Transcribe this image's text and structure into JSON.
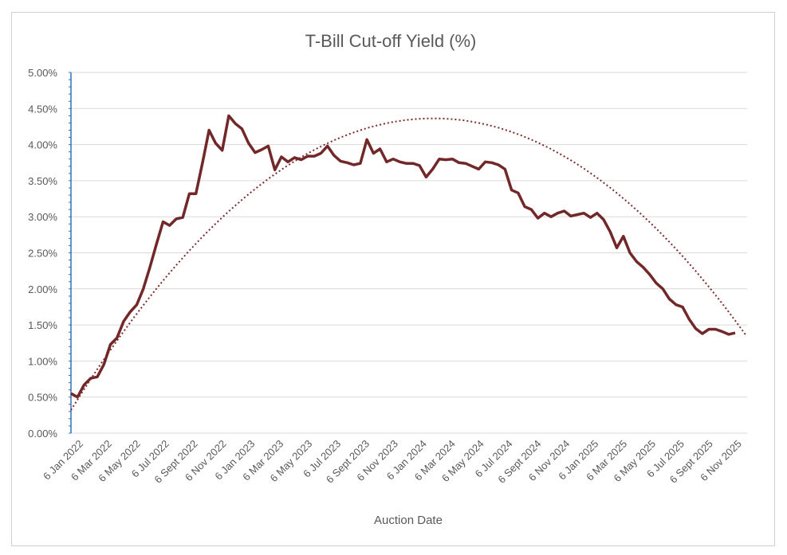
{
  "chart_data": {
    "type": "line",
    "title": "T-Bill Cut-off Yield (%)",
    "xlabel": "Auction Date",
    "ylabel": "",
    "ylim": [
      0,
      5
    ],
    "y_ticks": [
      "0.00%",
      "0.50%",
      "1.00%",
      "1.50%",
      "2.00%",
      "2.50%",
      "3.00%",
      "3.50%",
      "4.00%",
      "4.50%",
      "5.00%"
    ],
    "x_tick_labels": [
      "6 Jan 2022",
      "6 Mar 2022",
      "6 May 2022",
      "6 Jul 2022",
      "6 Sept 2022",
      "6 Nov 2022",
      "6 Jan 2023",
      "6 Mar 2023",
      "6 May 2023",
      "6 Jul 2023",
      "6 Sept 2023",
      "6 Nov 2023",
      "6 Jan 2024",
      "6 Mar 2024",
      "6 May 2024",
      "6 Jul 2024",
      "6 Sept 2024",
      "6 Nov 2024",
      "6 Jan 2025",
      "6 Mar 2025",
      "6 May 2025",
      "6 Jul 2025",
      "6 Sept 2025",
      "6 Nov 2025"
    ],
    "grid": true,
    "colors": {
      "series": "#722828",
      "trend": "#7b2c2c"
    },
    "series": [
      {
        "values": [
          0.55,
          0.5,
          0.67,
          0.76,
          0.78,
          0.95,
          1.23,
          1.32,
          1.55,
          1.68,
          1.78,
          2.0,
          2.3,
          2.62,
          2.93,
          2.88,
          2.97,
          2.99,
          3.32,
          3.32,
          3.75,
          4.2,
          4.02,
          3.92,
          4.4,
          4.29,
          4.22,
          4.02,
          3.89,
          3.93,
          3.98,
          3.65,
          3.83,
          3.76,
          3.82,
          3.79,
          3.84,
          3.84,
          3.88,
          3.98,
          3.85,
          3.77,
          3.75,
          3.72,
          3.74,
          4.07,
          3.88,
          3.94,
          3.76,
          3.8,
          3.76,
          3.74,
          3.74,
          3.71,
          3.55,
          3.66,
          3.8,
          3.79,
          3.8,
          3.75,
          3.74,
          3.7,
          3.66,
          3.76,
          3.75,
          3.72,
          3.66,
          3.37,
          3.33,
          3.14,
          3.1,
          2.98,
          3.05,
          3.0,
          3.05,
          3.08,
          3.01,
          3.03,
          3.05,
          2.99,
          3.05,
          2.96,
          2.79,
          2.57,
          2.73,
          2.5,
          2.38,
          2.3,
          2.2,
          2.08,
          2.0,
          1.86,
          1.78,
          1.75,
          1.58,
          1.45,
          1.38,
          1.44,
          1.44,
          1.41,
          1.37,
          1.39
        ]
      }
    ],
    "trendline": {
      "type": "polynomial",
      "values_start": 0.32,
      "values_peak": 4.12,
      "values_end": 1.35
    }
  }
}
